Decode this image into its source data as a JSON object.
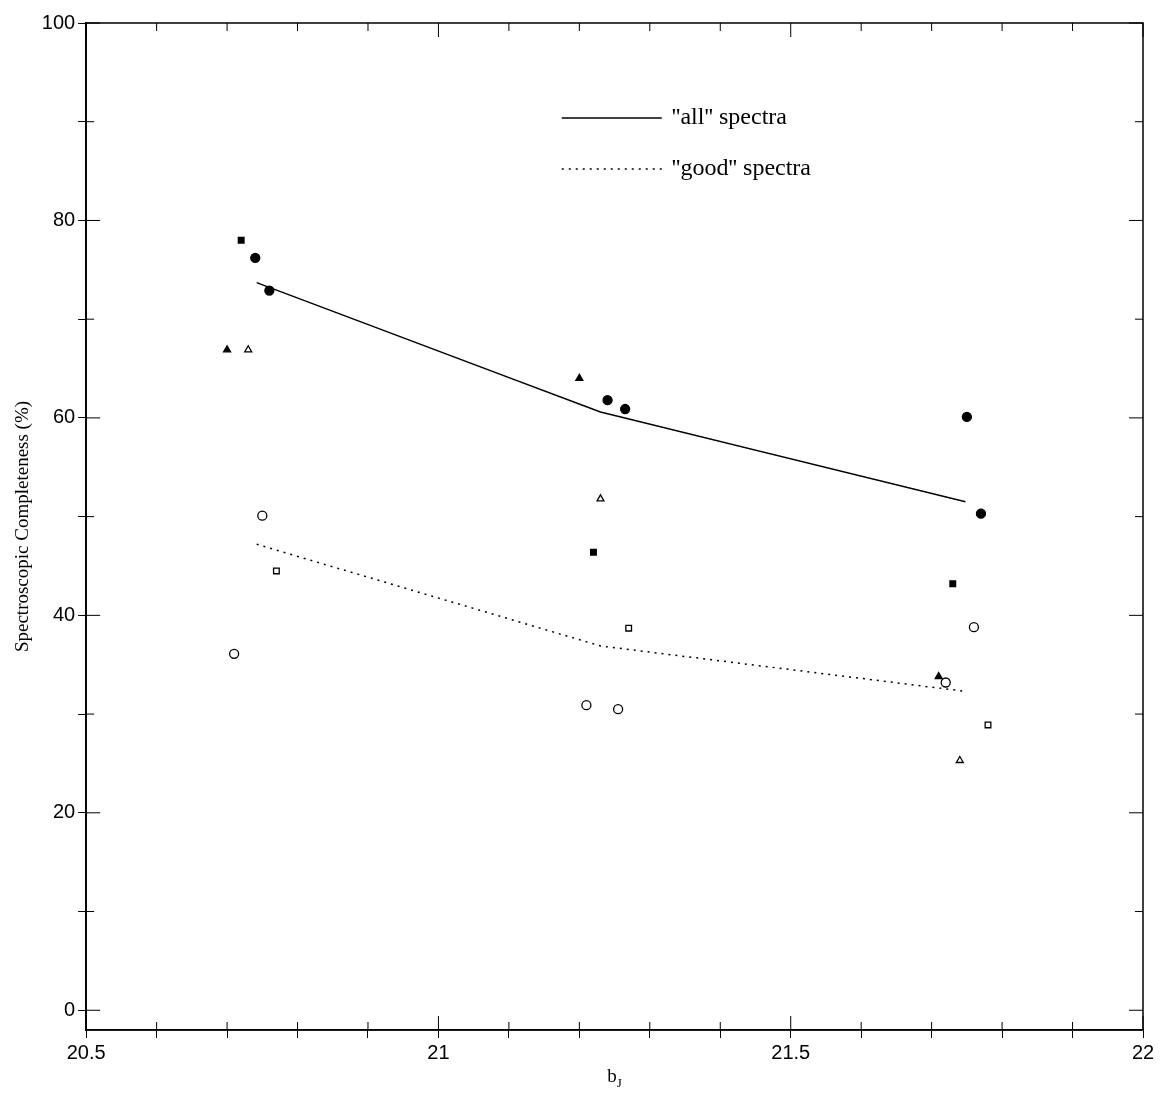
{
  "chart_data": {
    "type": "scatter",
    "xlabel": "b$_{J}$",
    "ylabel": "Spectroscopic Completeness (%)",
    "xlim": [
      20.5,
      22
    ],
    "ylim": [
      -2,
      100
    ],
    "xticks": [
      20.5,
      {
        "value": 20.6,
        "label": null
      },
      {
        "value": 20.7,
        "label": null
      },
      {
        "value": 20.8,
        "label": null
      },
      {
        "value": 20.9,
        "label": null
      },
      21,
      {
        "value": 21.1,
        "label": null
      },
      {
        "value": 21.2,
        "label": null
      },
      {
        "value": 21.3,
        "label": null
      },
      {
        "value": 21.4,
        "label": null
      },
      21.5,
      {
        "value": 21.6,
        "label": null
      },
      {
        "value": 21.7,
        "label": null
      },
      {
        "value": 21.8,
        "label": null
      },
      {
        "value": 21.9,
        "label": null
      },
      22
    ],
    "yticks": [
      0,
      {
        "value": 10,
        "label": null
      },
      20,
      {
        "value": 30,
        "label": null
      },
      40,
      {
        "value": 50,
        "label": null
      },
      60,
      {
        "value": 70,
        "label": null
      },
      80,
      {
        "value": 90,
        "label": null
      },
      100
    ],
    "grid": false,
    "legend": "top right",
    "series": [
      {
        "name": "''all'' spectra",
        "type": "line",
        "color": "#000000",
        "line_style": "solid",
        "marker": "none",
        "x": [
          20.742,
          21.23,
          21.748
        ],
        "values": [
          73.7,
          60.6,
          51.5
        ]
      },
      {
        "name": "''good'' spectra",
        "type": "line",
        "color": "#000000",
        "line_style": "dotted",
        "marker": "none",
        "x": [
          20.742,
          21.23,
          21.748
        ],
        "values": [
          47.2,
          36.9,
          32.3
        ]
      },
      {
        "color": "#000000",
        "marker": "circle",
        "x": [
          20.74,
          20.76,
          21.24,
          21.265,
          21.75,
          21.77
        ],
        "values": [
          76.2,
          72.9,
          61.8,
          60.9,
          60.1,
          50.3
        ]
      },
      {
        "color": "#000000",
        "marker": "square",
        "x": [
          20.72,
          21.22,
          21.73
        ],
        "values": [
          78.0,
          46.4,
          43.2
        ]
      },
      {
        "color": "#000000",
        "marker": "triangle",
        "x": [
          20.7,
          21.2,
          21.71
        ],
        "values": [
          66.9,
          64.0,
          33.8
        ]
      },
      {
        "color": "#ffffff",
        "marker": "triangle",
        "x": [
          20.73,
          21.23,
          21.74
        ],
        "values": [
          66.9,
          51.8,
          25.3
        ]
      },
      {
        "color": "#ffffff",
        "marker": "circle",
        "x": [
          20.75,
          20.71,
          21.21,
          21.255,
          21.72,
          21.76
        ],
        "values": [
          50.1,
          36.1,
          30.9,
          30.5,
          33.2,
          38.8
        ]
      },
      {
        "color": "#ffffff",
        "marker": "square",
        "x": [
          20.77,
          21.27,
          21.78
        ],
        "values": [
          44.5,
          38.7,
          28.9
        ]
      }
    ]
  }
}
